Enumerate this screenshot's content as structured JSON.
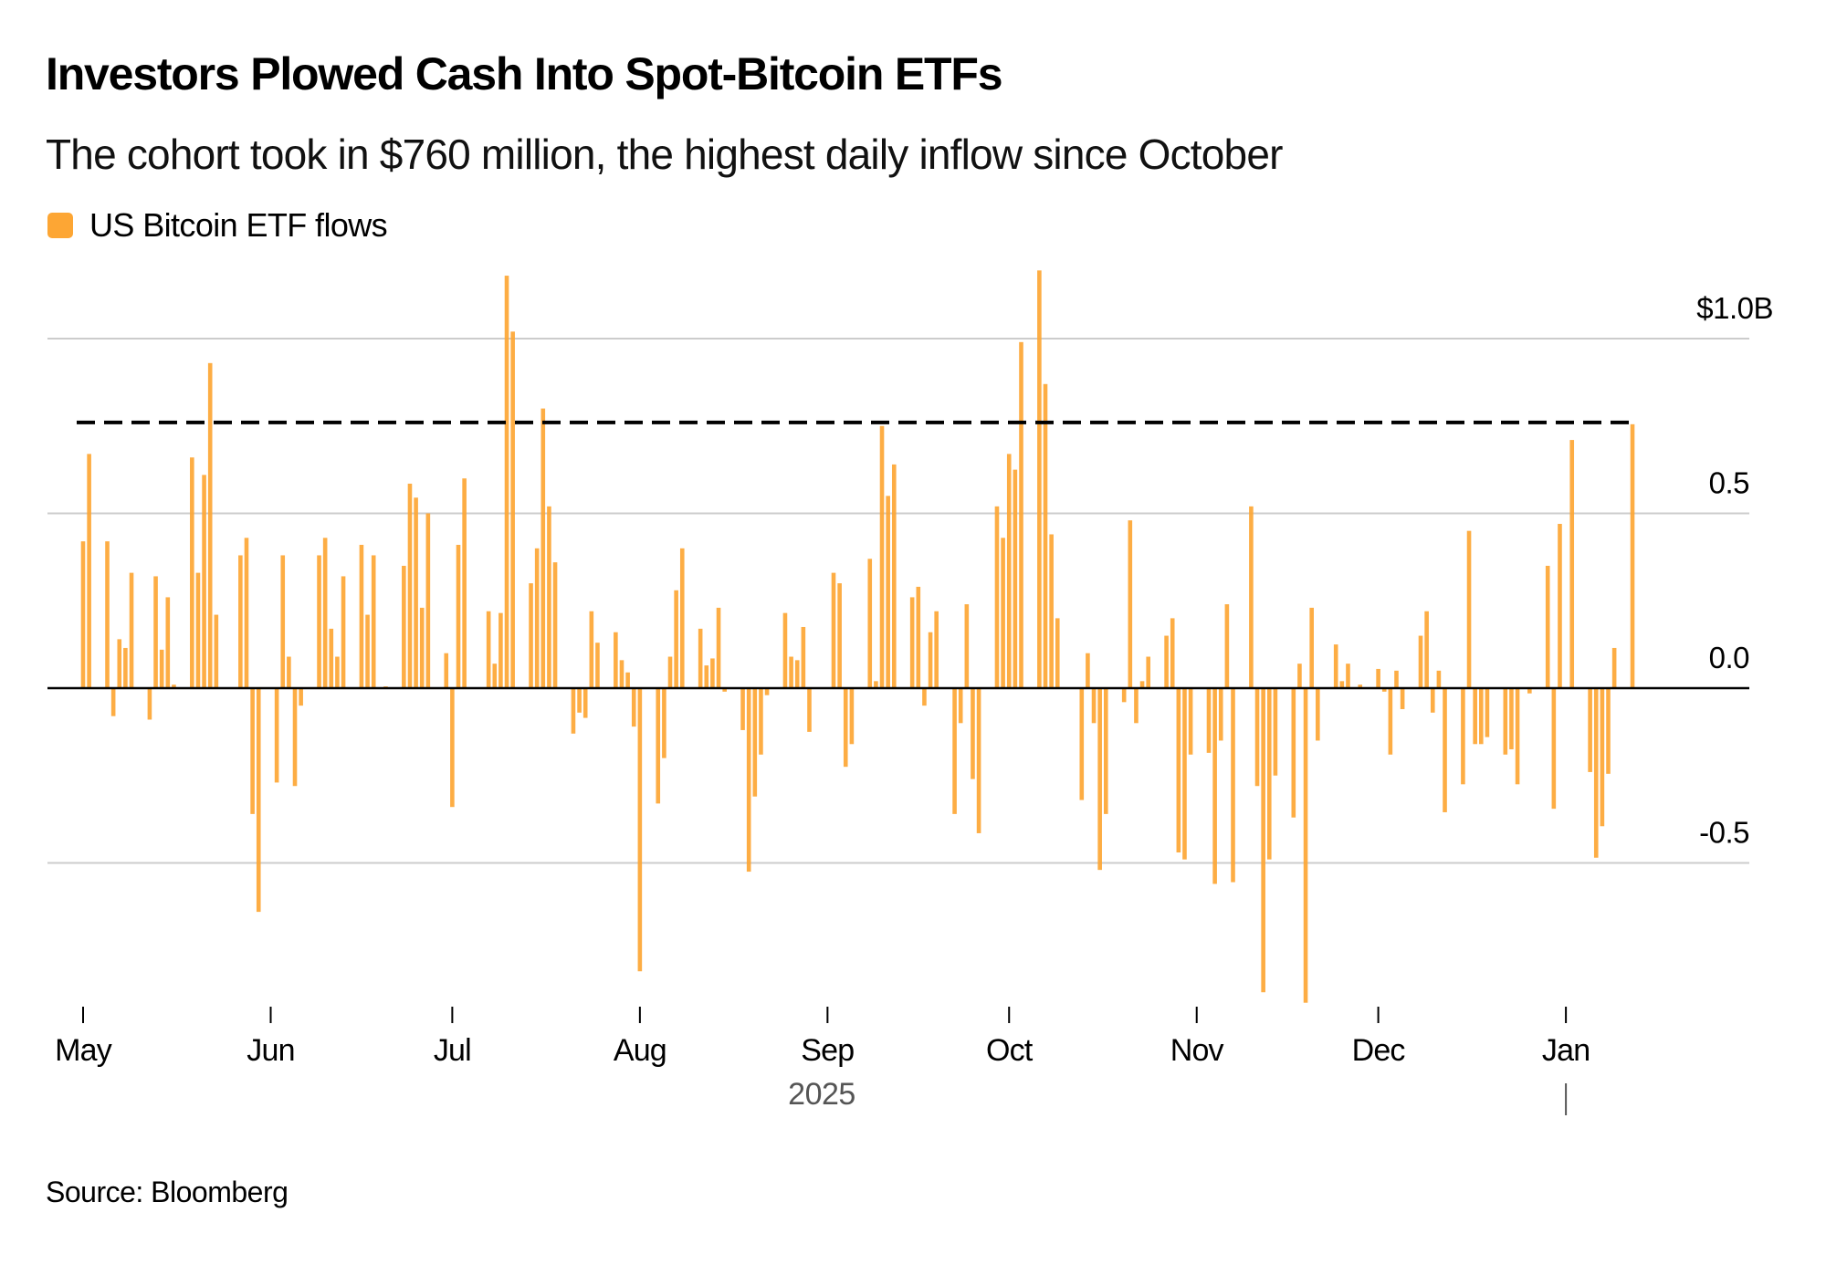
{
  "chart_data": {
    "type": "bar",
    "title": "Investors Plowed Cash Into Spot-Bitcoin ETFs",
    "subtitle": "The cohort took in $760 million, the highest daily inflow since October",
    "legend": [
      {
        "name": "US Bitcoin ETF flows",
        "color": "#FDA634"
      }
    ],
    "legend_position": "top-left",
    "source": "Source: Bloomberg",
    "xlabel": "2025",
    "ylabel": "",
    "y_unit": "$ billions",
    "ylim": [
      -0.95,
      1.22
    ],
    "y_ticks": [
      {
        "value": 1.0,
        "label": "$1.0B"
      },
      {
        "value": 0.5,
        "label": "0.5"
      },
      {
        "value": 0.0,
        "label": "0.0"
      },
      {
        "value": -0.5,
        "label": "-0.5"
      }
    ],
    "x_ticks": [
      {
        "date": "2025-05-01",
        "label": "May"
      },
      {
        "date": "2025-06-01",
        "label": "Jun"
      },
      {
        "date": "2025-07-01",
        "label": "Jul"
      },
      {
        "date": "2025-08-01",
        "label": "Aug"
      },
      {
        "date": "2025-09-01",
        "label": "Sep"
      },
      {
        "date": "2025-10-01",
        "label": "Oct"
      },
      {
        "date": "2025-11-01",
        "label": "Nov"
      },
      {
        "date": "2025-12-01",
        "label": "Dec"
      },
      {
        "date": "2026-01-01",
        "label": "Jan"
      }
    ],
    "year_label": "2025",
    "year_divider_at": "2026-01-01",
    "grid": true,
    "reference_line": {
      "value": 0.76,
      "style": "dashed",
      "color": "#000000",
      "label": "$760 million"
    },
    "bar_color": "#FDA634",
    "start_date": "2025-05-01",
    "series": [
      {
        "name": "US Bitcoin ETF flows",
        "values": [
          0.42,
          0.67,
          0.42,
          -0.08,
          0.14,
          0.115,
          0.33,
          -0.09,
          0.32,
          0.11,
          0.26,
          0.01,
          0.66,
          0.33,
          0.61,
          0.93,
          0.21,
          0.38,
          0.43,
          -0.36,
          -0.64,
          -0.27,
          0.38,
          0.09,
          -0.28,
          -0.05,
          0.38,
          0.43,
          0.17,
          0.09,
          0.32,
          0.41,
          0.21,
          0.38,
          0.005,
          0.35,
          0.585,
          0.545,
          0.23,
          0.5,
          0.1,
          -0.34,
          0.41,
          0.6,
          0.22,
          0.07,
          0.215,
          1.18,
          1.02,
          0.3,
          0.4,
          0.8,
          0.52,
          0.36,
          -0.13,
          -0.07,
          -0.085,
          0.22,
          0.13,
          0.16,
          0.08,
          0.045,
          -0.11,
          -0.81,
          -0.33,
          -0.2,
          0.09,
          0.28,
          0.4,
          0.17,
          0.065,
          0.085,
          0.23,
          -0.01,
          -0.12,
          -0.525,
          -0.31,
          -0.19,
          -0.02,
          0.215,
          0.09,
          0.08,
          0.175,
          -0.125,
          0.33,
          0.3,
          -0.225,
          -0.16,
          0.37,
          0.02,
          0.75,
          0.55,
          0.64,
          0.26,
          0.29,
          -0.05,
          0.16,
          0.22,
          -0.36,
          -0.1,
          0.24,
          -0.26,
          -0.415,
          0.52,
          0.43,
          0.67,
          0.625,
          0.99,
          1.195,
          0.87,
          0.44,
          0.2,
          0.0,
          -0.32,
          0.1,
          -0.1,
          -0.52,
          -0.36,
          -0.04,
          0.48,
          -0.1,
          0.02,
          0.09,
          0.15,
          0.2,
          -0.47,
          -0.49,
          -0.19,
          -0.185,
          -0.56,
          -0.15,
          0.24,
          -0.555,
          0.52,
          -0.28,
          -0.87,
          -0.49,
          -0.25,
          -0.37,
          0.07,
          -0.9,
          0.23,
          -0.15,
          0.125,
          0.02,
          0.07,
          0.01,
          0.055,
          -0.01,
          -0.19,
          0.05,
          -0.06,
          0.15,
          0.22,
          -0.07,
          0.05,
          -0.355,
          -0.275,
          0.45,
          -0.16,
          -0.16,
          -0.14,
          -0.19,
          -0.175,
          -0.275,
          -0.015,
          0.35,
          -0.345,
          0.47,
          0.71,
          -0.24,
          -0.485,
          -0.395,
          -0.245,
          0.115,
          0.755
        ]
      }
    ]
  }
}
